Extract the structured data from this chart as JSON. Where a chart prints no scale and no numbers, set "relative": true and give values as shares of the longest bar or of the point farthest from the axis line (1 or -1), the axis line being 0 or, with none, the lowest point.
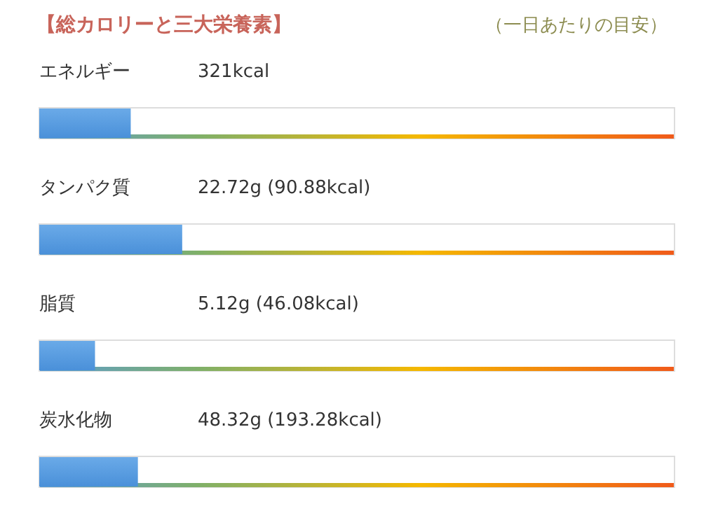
{
  "chart_data": {
    "type": "bar",
    "orientation": "horizontal",
    "relative": true,
    "title": "【総カロリーと三大栄養素】",
    "annotations": [
      "（一日あたりの目安）",
      "321kcal",
      "22.72g (90.88kcal)",
      "5.12g (46.08kcal)",
      "48.32g (193.28kcal)"
    ],
    "categories": [
      "エネルギー",
      "タンパク質",
      "脂質",
      "炭水化物"
    ],
    "values": [
      0.64,
      1,
      0.39,
      0.69
    ],
    "color": "#4a90d9"
  }
}
